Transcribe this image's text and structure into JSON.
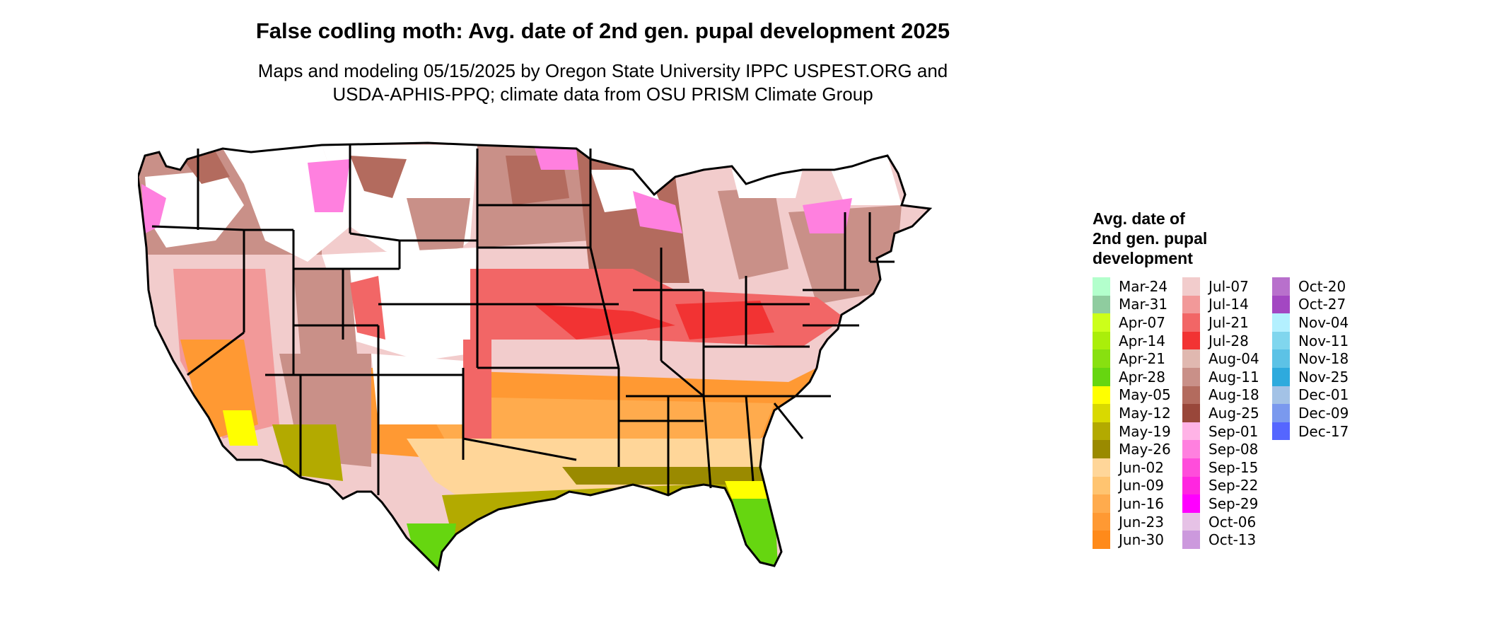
{
  "title": "False codling moth: Avg. date of 2nd gen. pupal development 2025",
  "subtitle_line1": "Maps and modeling 05/15/2025 by Oregon State University IPPC USPEST.ORG and",
  "subtitle_line2": "USDA-APHIS-PPQ; climate data from OSU PRISM Climate Group",
  "legend": {
    "title_lines": [
      "Avg. date of",
      "2nd gen. pupal",
      "development"
    ],
    "columns": [
      [
        {
          "label": "Mar-24",
          "color": "#b3ffcc"
        },
        {
          "label": "Mar-31",
          "color": "#8fcc9f"
        },
        {
          "label": "Apr-07",
          "color": "#ccff1a"
        },
        {
          "label": "Apr-14",
          "color": "#aaee0a"
        },
        {
          "label": "Apr-21",
          "color": "#88e010"
        },
        {
          "label": "Apr-28",
          "color": "#66d610"
        },
        {
          "label": "May-05",
          "color": "#ffff00"
        },
        {
          "label": "May-12",
          "color": "#d9d900"
        },
        {
          "label": "May-19",
          "color": "#b3aa00"
        },
        {
          "label": "May-26",
          "color": "#9a8a00"
        },
        {
          "label": "Jun-02",
          "color": "#ffd699"
        },
        {
          "label": "Jun-09",
          "color": "#ffc470"
        },
        {
          "label": "Jun-16",
          "color": "#ffab4d"
        },
        {
          "label": "Jun-23",
          "color": "#ff9933"
        },
        {
          "label": "Jun-30",
          "color": "#ff8a1a"
        }
      ],
      [
        {
          "label": "Jul-07",
          "color": "#f2cccc"
        },
        {
          "label": "Jul-14",
          "color": "#f29999"
        },
        {
          "label": "Jul-21",
          "color": "#f26666"
        },
        {
          "label": "Jul-28",
          "color": "#f23333"
        },
        {
          "label": "Aug-04",
          "color": "#e0b8b0"
        },
        {
          "label": "Aug-11",
          "color": "#c99088"
        },
        {
          "label": "Aug-18",
          "color": "#b36b5e"
        },
        {
          "label": "Aug-25",
          "color": "#99473a"
        },
        {
          "label": "Sep-01",
          "color": "#ffb3e6"
        },
        {
          "label": "Sep-08",
          "color": "#ff80df"
        },
        {
          "label": "Sep-15",
          "color": "#ff4ddb"
        },
        {
          "label": "Sep-22",
          "color": "#ff26e0"
        },
        {
          "label": "Sep-29",
          "color": "#ff00ff"
        },
        {
          "label": "Oct-06",
          "color": "#e6c2e6"
        },
        {
          "label": "Oct-13",
          "color": "#cc99dd"
        }
      ],
      [
        {
          "label": "Oct-20",
          "color": "#b870cc"
        },
        {
          "label": "Oct-27",
          "color": "#a347c2"
        },
        {
          "label": "Nov-04",
          "color": "#b3f0ff"
        },
        {
          "label": "Nov-11",
          "color": "#80d6ee"
        },
        {
          "label": "Nov-18",
          "color": "#5cc2e6"
        },
        {
          "label": "Nov-25",
          "color": "#2eaadd"
        },
        {
          "label": "Dec-01",
          "color": "#a3c2e6"
        },
        {
          "label": "Dec-09",
          "color": "#7a99ee"
        },
        {
          "label": "Dec-17",
          "color": "#5566ff"
        }
      ]
    ]
  }
}
